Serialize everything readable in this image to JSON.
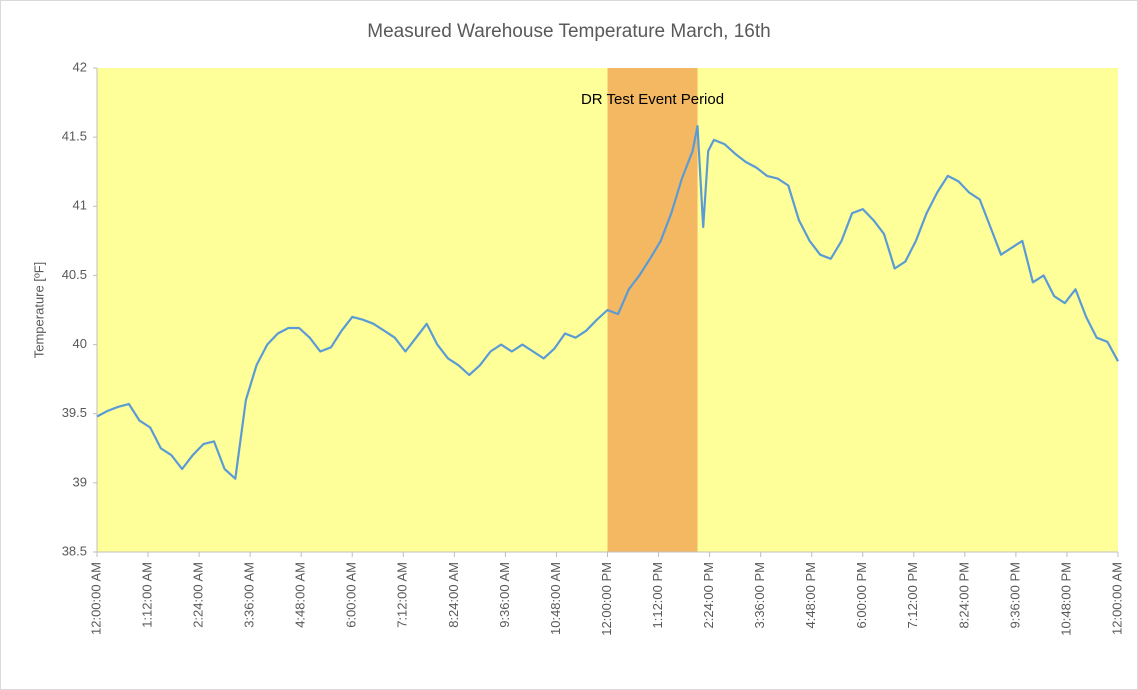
{
  "chart_data": {
    "type": "line",
    "title": "Measured Warehouse Temperature March, 16th",
    "y_label": "Temperature [ºF]",
    "x": [
      0,
      15,
      30,
      45,
      60,
      75,
      90,
      105,
      120,
      135,
      150,
      165,
      180,
      195,
      210,
      225,
      240,
      255,
      270,
      285,
      300,
      315,
      330,
      345,
      360,
      375,
      390,
      405,
      420,
      435,
      450,
      465,
      480,
      495,
      510,
      525,
      540,
      555,
      570,
      585,
      600,
      615,
      630,
      645,
      660,
      675,
      690,
      705,
      720,
      735,
      750,
      765,
      780,
      795,
      810,
      825,
      840,
      847,
      855,
      862,
      870,
      885,
      900,
      915,
      930,
      945,
      960,
      975,
      990,
      1005,
      1020,
      1035,
      1050,
      1065,
      1080,
      1095,
      1110,
      1125,
      1140,
      1155,
      1170,
      1185,
      1200,
      1215,
      1230,
      1245,
      1260,
      1275,
      1290,
      1305,
      1320,
      1335,
      1350,
      1365,
      1380,
      1395,
      1410,
      1425,
      1440
    ],
    "series": [
      {
        "name": "Temperature",
        "color": "#5b9bd5",
        "values": [
          39.48,
          39.52,
          39.55,
          39.57,
          39.45,
          39.4,
          39.25,
          39.2,
          39.1,
          39.2,
          39.28,
          39.3,
          39.1,
          39.03,
          39.6,
          39.85,
          40.0,
          40.08,
          40.12,
          40.12,
          40.05,
          39.95,
          39.98,
          40.1,
          40.2,
          40.18,
          40.15,
          40.1,
          40.05,
          39.95,
          40.05,
          40.15,
          40.0,
          39.9,
          39.85,
          39.78,
          39.85,
          39.95,
          40.0,
          39.95,
          40.0,
          39.95,
          39.9,
          39.97,
          40.08,
          40.05,
          40.1,
          40.18,
          40.25,
          40.22,
          40.4,
          40.5,
          40.62,
          40.75,
          40.95,
          41.2,
          41.4,
          41.58,
          40.85,
          41.4,
          41.48,
          41.45,
          41.38,
          41.32,
          41.28,
          41.22,
          41.2,
          41.15,
          40.9,
          40.75,
          40.65,
          40.62,
          40.75,
          40.95,
          40.98,
          40.9,
          40.8,
          40.55,
          40.6,
          40.75,
          40.95,
          41.1,
          41.22,
          41.18,
          41.1,
          41.05,
          40.85,
          40.65,
          40.7,
          40.75,
          40.45,
          40.5,
          40.35,
          40.3,
          40.4,
          40.2,
          40.05,
          40.02,
          39.88
        ]
      }
    ],
    "xlim": [
      0,
      1440
    ],
    "xticks": [
      {
        "value": 0,
        "label": "12:00:00 AM"
      },
      {
        "value": 72,
        "label": "1:12:00 AM"
      },
      {
        "value": 144,
        "label": "2:24:00 AM"
      },
      {
        "value": 216,
        "label": "3:36:00 AM"
      },
      {
        "value": 288,
        "label": "4:48:00 AM"
      },
      {
        "value": 360,
        "label": "6:00:00 AM"
      },
      {
        "value": 432,
        "label": "7:12:00 AM"
      },
      {
        "value": 504,
        "label": "8:24:00 AM"
      },
      {
        "value": 576,
        "label": "9:36:00 AM"
      },
      {
        "value": 648,
        "label": "10:48:00 AM"
      },
      {
        "value": 720,
        "label": "12:00:00 PM"
      },
      {
        "value": 792,
        "label": "1:12:00 PM"
      },
      {
        "value": 864,
        "label": "2:24:00 PM"
      },
      {
        "value": 936,
        "label": "3:36:00 PM"
      },
      {
        "value": 1008,
        "label": "4:48:00 PM"
      },
      {
        "value": 1080,
        "label": "6:00:00 PM"
      },
      {
        "value": 1152,
        "label": "7:12:00 PM"
      },
      {
        "value": 1224,
        "label": "8:24:00 PM"
      },
      {
        "value": 1296,
        "label": "9:36:00 PM"
      },
      {
        "value": 1368,
        "label": "10:48:00 PM"
      },
      {
        "value": 1440,
        "label": "12:00:00 AM"
      }
    ],
    "ylim": [
      38.5,
      42
    ],
    "yticks": [
      38.5,
      39,
      39.5,
      40,
      40.5,
      41,
      41.5,
      42
    ],
    "plot_background": "#ffff99",
    "shaded_region": {
      "label": "DR Test Event Period",
      "xlim": [
        720,
        847
      ],
      "color": "#f4b862"
    }
  }
}
